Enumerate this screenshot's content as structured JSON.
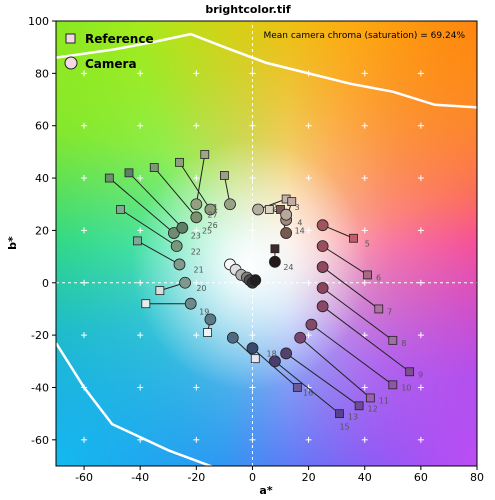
{
  "chart_data": {
    "type": "scatter",
    "title": "brightcolor.tif",
    "xlabel": "a*",
    "ylabel": "b*",
    "xlim": [
      -70,
      80
    ],
    "ylim": [
      -70,
      100
    ],
    "xticks": [
      -60,
      -40,
      -20,
      0,
      20,
      40,
      60,
      80
    ],
    "yticks": [
      -60,
      -40,
      -20,
      0,
      20,
      40,
      60,
      80,
      100
    ],
    "annotation": "Mean camera chroma (saturation) = 69.24%",
    "legend": {
      "position": "top-left",
      "entries": [
        {
          "label": "Reference",
          "marker": "square"
        },
        {
          "label": "Camera",
          "marker": "circle"
        }
      ]
    },
    "grid": "plus markers every 20 units",
    "colors": {
      "boundary": "#ffffff",
      "connector": "#222222",
      "marker_edge": "#222222"
    },
    "series": [
      {
        "name": "Reference",
        "marker": "square",
        "points": [
          {
            "id": "1",
            "a": -10,
            "b": 41,
            "color": "#9c9e88"
          },
          {
            "id": "2",
            "a": 12,
            "b": 32,
            "color": "#c4b2ac"
          },
          {
            "id": "3",
            "a": 14,
            "b": 31,
            "color": "#c4aca4"
          },
          {
            "id": "4",
            "a": 10,
            "b": 28,
            "color": "#7e5a56"
          },
          {
            "id": "5",
            "a": 36,
            "b": 17,
            "color": "#c45a6a"
          },
          {
            "id": "6",
            "a": 41,
            "b": 3,
            "color": "#a86a82"
          },
          {
            "id": "7",
            "a": 45,
            "b": -10,
            "color": "#b070a0"
          },
          {
            "id": "8",
            "a": 50,
            "b": -22,
            "color": "#a26ea4"
          },
          {
            "id": "9",
            "a": 56,
            "b": -34,
            "color": "#7c4e92"
          },
          {
            "id": "10",
            "a": 50,
            "b": -39,
            "color": "#8e58a4"
          },
          {
            "id": "11",
            "a": 42,
            "b": -44,
            "color": "#9a60b0"
          },
          {
            "id": "12",
            "a": 38,
            "b": -47,
            "color": "#6e4a9a"
          },
          {
            "id": "13",
            "a": 31,
            "b": -50,
            "color": "#5a4090"
          },
          {
            "id": "14",
            "a": 8,
            "b": 13,
            "color": "#3e2a2a"
          },
          {
            "id": "15",
            "a": 16,
            "b": -40,
            "color": "#6a5a98"
          },
          {
            "id": "16",
            "a": 1,
            "b": -29,
            "color": "#e8e8f4"
          },
          {
            "id": "17",
            "a": -16,
            "b": -19,
            "color": "#eef2fa"
          },
          {
            "id": "18",
            "a": -38,
            "b": -8,
            "color": "#e6ecec"
          },
          {
            "id": "19",
            "a": -33,
            "b": -3,
            "color": "#d8e0de"
          },
          {
            "id": "20",
            "a": -41,
            "b": 16,
            "color": "#80a89a"
          },
          {
            "id": "21",
            "a": -47,
            "b": 28,
            "color": "#80a88e"
          },
          {
            "id": "22",
            "a": -51,
            "b": 40,
            "color": "#6e8e6e"
          },
          {
            "id": "23",
            "a": -44,
            "b": 42,
            "color": "#5e7e6a"
          },
          {
            "id": "24",
            "a": 6,
            "b": 28,
            "color": "#ddd2c8"
          },
          {
            "id": "25",
            "a": -35,
            "b": 44,
            "color": "#7e9878"
          },
          {
            "id": "26",
            "a": -26,
            "b": 46,
            "color": "#8e9e80"
          },
          {
            "id": "27",
            "a": -17,
            "b": 49,
            "color": "#a0a488"
          }
        ]
      },
      {
        "name": "Camera",
        "marker": "circle",
        "points": [
          {
            "id": "1",
            "a": -8,
            "b": 30,
            "color": "#9aa284"
          },
          {
            "id": "2",
            "a": 2,
            "b": 28,
            "color": "#b4aea0"
          },
          {
            "id": "3",
            "a": 12,
            "b": 24,
            "color": "#a08a7e"
          },
          {
            "id": "4",
            "a": 12,
            "b": 19,
            "color": "#7a5a50"
          },
          {
            "id": "5",
            "a": 25,
            "b": 22,
            "color": "#a0545e"
          },
          {
            "id": "6",
            "a": 25,
            "b": 14,
            "color": "#9c4e5e"
          },
          {
            "id": "7",
            "a": 25,
            "b": 6,
            "color": "#904860"
          },
          {
            "id": "8",
            "a": 25,
            "b": -2,
            "color": "#8a4460"
          },
          {
            "id": "9",
            "a": 25,
            "b": -9,
            "color": "#8a4868"
          },
          {
            "id": "10",
            "a": 21,
            "b": -16,
            "color": "#844a6c"
          },
          {
            "id": "11",
            "a": 17,
            "b": -21,
            "color": "#7a4470"
          },
          {
            "id": "12",
            "a": 12,
            "b": -27,
            "color": "#56406e"
          },
          {
            "id": "13",
            "a": 8,
            "b": -30,
            "color": "#4a3c6c"
          },
          {
            "id": "14",
            "a": 8,
            "b": 8,
            "color": "#241818"
          },
          {
            "id": "15",
            "a": 0,
            "b": -25,
            "color": "#3a4a6c"
          },
          {
            "id": "16",
            "a": -7,
            "b": -21,
            "color": "#4e6a84"
          },
          {
            "id": "17",
            "a": -15,
            "b": -14,
            "color": "#5a7a8a"
          },
          {
            "id": "18",
            "a": -22,
            "b": -8,
            "color": "#6a8a8c"
          },
          {
            "id": "19",
            "a": -24,
            "b": 0,
            "color": "#7e9a90"
          },
          {
            "id": "20",
            "a": -26,
            "b": 7,
            "color": "#7e9c8c"
          },
          {
            "id": "21",
            "a": -27,
            "b": 14,
            "color": "#78987e"
          },
          {
            "id": "22",
            "a": -28,
            "b": 19,
            "color": "#6e8c72"
          },
          {
            "id": "23",
            "a": -25,
            "b": 21,
            "color": "#5e7e66"
          },
          {
            "id": "24",
            "a": 12,
            "b": 26,
            "color": "#b8a89c"
          },
          {
            "id": "25",
            "a": -20,
            "b": 25,
            "color": "#7a9270"
          },
          {
            "id": "26",
            "a": -15,
            "b": 28,
            "color": "#8e9c7c"
          },
          {
            "id": "27",
            "a": -20,
            "b": 30,
            "color": "#94a082"
          }
        ]
      }
    ],
    "labels": [
      {
        "text": "1",
        "a": -14,
        "b": 29
      },
      {
        "text": "2",
        "a": 7,
        "b": 29
      },
      {
        "text": "3",
        "a": 15,
        "b": 29
      },
      {
        "text": "4",
        "a": 16,
        "b": 23
      },
      {
        "text": "5",
        "a": 40,
        "b": 15
      },
      {
        "text": "6",
        "a": 44,
        "b": 2
      },
      {
        "text": "7",
        "a": 48,
        "b": -11
      },
      {
        "text": "8",
        "a": 53,
        "b": -23
      },
      {
        "text": "9",
        "a": 59,
        "b": -35
      },
      {
        "text": "10",
        "a": 53,
        "b": -40
      },
      {
        "text": "11",
        "a": 45,
        "b": -45
      },
      {
        "text": "12",
        "a": 41,
        "b": -48
      },
      {
        "text": "13",
        "a": 34,
        "b": -51
      },
      {
        "text": "14",
        "a": 15,
        "b": 20
      },
      {
        "text": "15",
        "a": 31,
        "b": -55
      },
      {
        "text": "16",
        "a": 18,
        "b": -42
      },
      {
        "text": "18",
        "a": 5,
        "b": -27
      },
      {
        "text": "19",
        "a": -19,
        "b": -11
      },
      {
        "text": "20",
        "a": -20,
        "b": -2
      },
      {
        "text": "21",
        "a": -21,
        "b": 5
      },
      {
        "text": "22",
        "a": -22,
        "b": 12
      },
      {
        "text": "23",
        "a": -22,
        "b": 18
      },
      {
        "text": "24",
        "a": 11,
        "b": 6
      },
      {
        "text": "25",
        "a": -18,
        "b": 20
      },
      {
        "text": "26",
        "a": -16,
        "b": 22
      },
      {
        "text": "27",
        "a": -16,
        "b": 26
      }
    ]
  }
}
